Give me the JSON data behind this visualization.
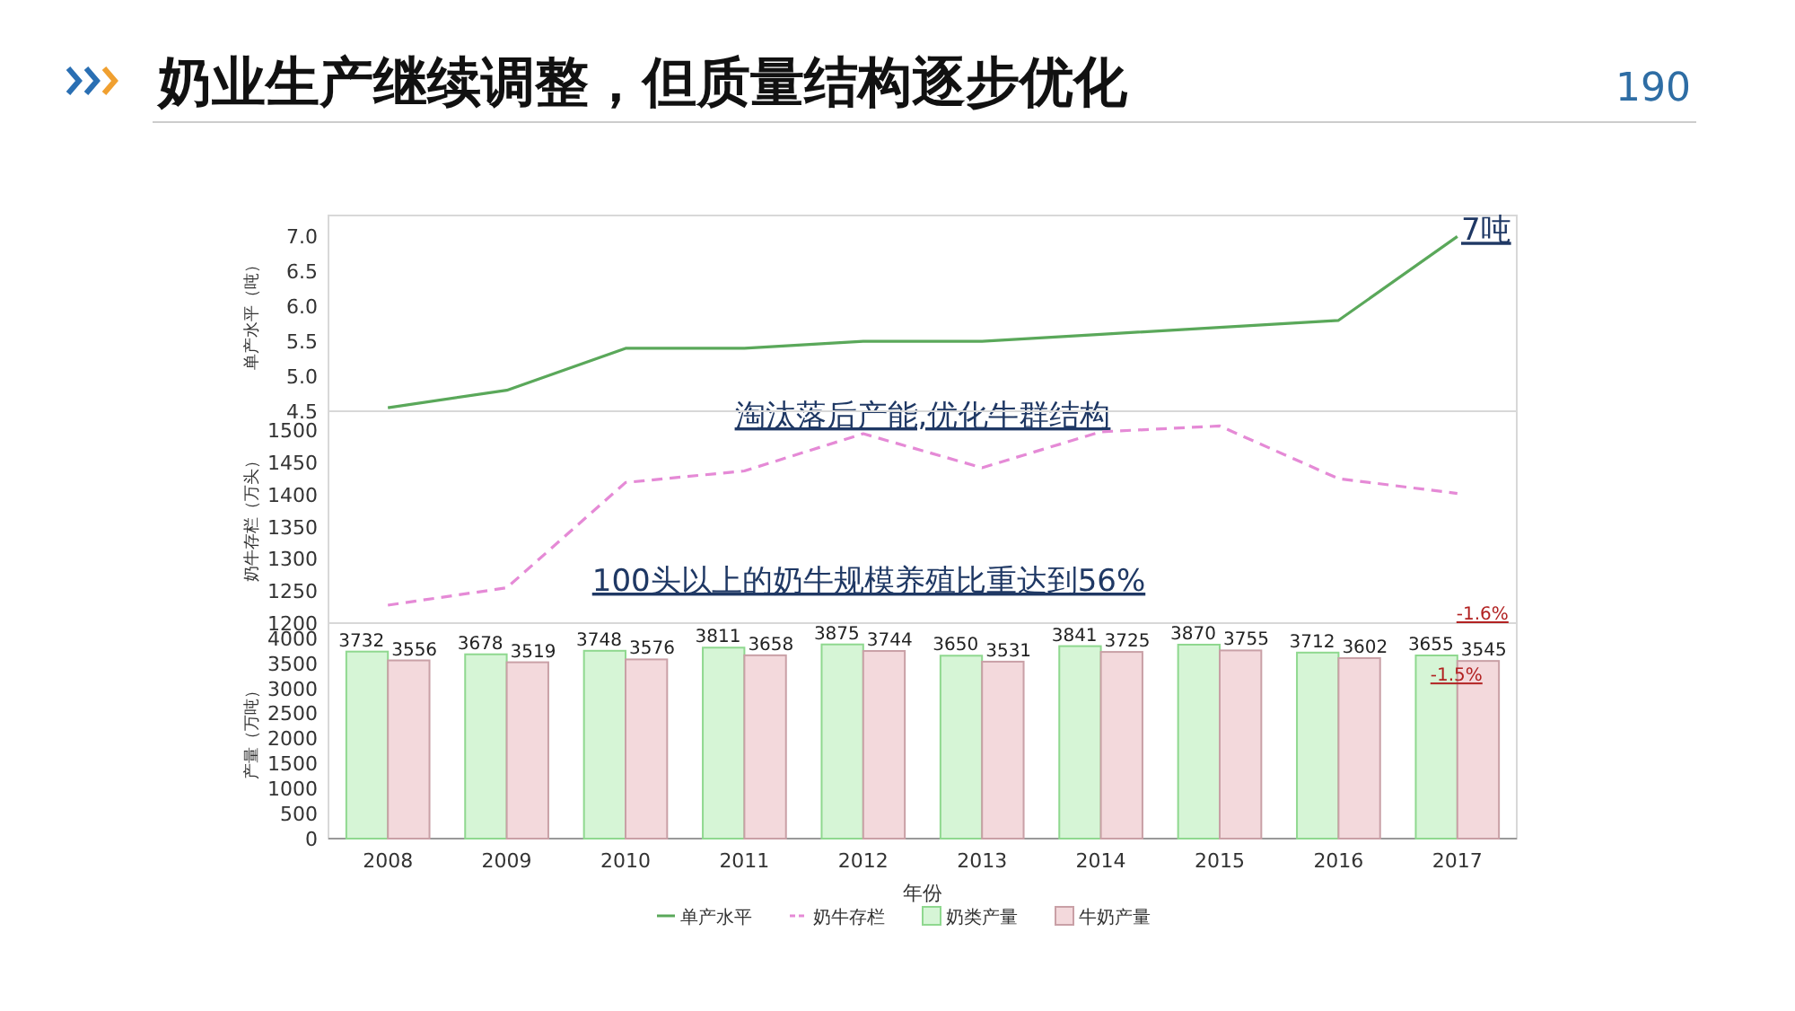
{
  "chart_data": [
    {
      "type": "line",
      "title": "奶业生产继续调整，但质量结构逐步优化",
      "ylabel": "单产水平（吨）",
      "categories": [
        "2008",
        "2009",
        "2010",
        "2011",
        "2012",
        "2013",
        "2014",
        "2015",
        "2016",
        "2017"
      ],
      "series": [
        {
          "name": "单产水平",
          "color": "#5aa85a",
          "values": [
            4.55,
            4.8,
            5.4,
            5.4,
            5.5,
            5.5,
            5.6,
            5.7,
            5.8,
            7.0
          ]
        }
      ],
      "ylim": [
        4.5,
        7.3
      ],
      "yticks": [
        4.5,
        {
          "value": 5,
          "label": "5.0"
        },
        5.5,
        {
          "value": 6,
          "label": "6.0"
        },
        6.5,
        {
          "value": 7,
          "label": "7.0"
        }
      ],
      "tick_labels": "y",
      "line_style": "solid",
      "marker": "none",
      "legend": "bottom",
      "annotations": [
        "190",
        {
          "text": "7吨",
          "x": "2017",
          "y": 7.0
        },
        "淘汰落后产能,优化牛群结构"
      ]
    },
    {
      "type": "line",
      "ylabel": "奶牛存栏（万头）",
      "categories": [
        "2008",
        "2009",
        "2010",
        "2011",
        "2012",
        "2013",
        "2014",
        "2015",
        "2016",
        "2017"
      ],
      "series": [
        {
          "name": "奶牛存栏",
          "color": "#e58ad6",
          "values": [
            1228,
            1255,
            1419,
            1437,
            1495,
            1442,
            1498,
            1507,
            1425,
            1402
          ]
        }
      ],
      "ylim": [
        1200,
        1530
      ],
      "yticks": [
        1200,
        1250,
        1300,
        1350,
        1400,
        1450,
        1500
      ],
      "tick_labels": "y",
      "line_style": "dashed",
      "marker": "none",
      "legend": "bottom",
      "annotations": [
        "100头以上的奶牛规模养殖比重达到56%"
      ]
    },
    {
      "type": "bar",
      "xlabel": "年份",
      "ylabel": "产量（万吨）",
      "categories": [
        "2008",
        "2009",
        "2010",
        "2011",
        "2012",
        "2013",
        "2014",
        "2015",
        "2016",
        "2017"
      ],
      "series": [
        {
          "name": "奶类产量",
          "color": "#d6f5d6",
          "values": [
            3732,
            3678,
            3748,
            3811,
            3875,
            3650,
            3841,
            3870,
            3712,
            3655
          ]
        },
        {
          "name": "牛奶产量",
          "color": "#f3d9dc",
          "values": [
            3556,
            3519,
            3576,
            3658,
            3744,
            3531,
            3725,
            3755,
            3602,
            3545
          ]
        }
      ],
      "ylim": [
        0,
        4300
      ],
      "yticks": [
        0,
        500,
        1000,
        1500,
        2000,
        2500,
        3000,
        3500,
        4000
      ],
      "data_labels": true,
      "legend": "bottom",
      "annotations": [
        "-1.6%",
        "-1.5%"
      ]
    }
  ]
}
